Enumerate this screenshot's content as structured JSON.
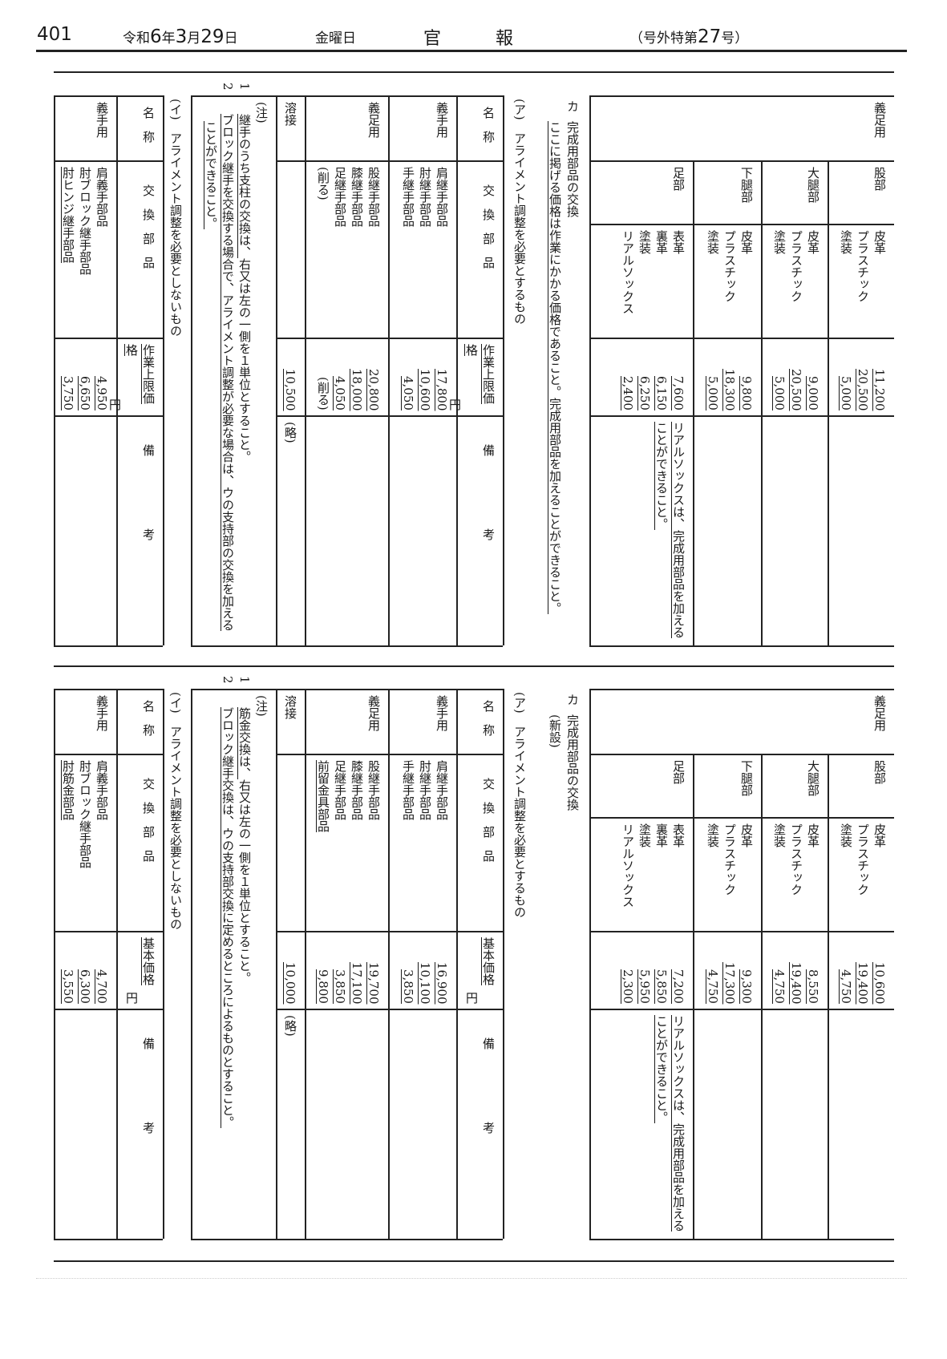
{
  "header": {
    "page_number": "401",
    "era": "令和",
    "year": "6",
    "year_unit": "年",
    "month": "3",
    "month_unit": "月",
    "day": "29",
    "day_unit": "日",
    "weekday": "金曜日",
    "title_1": "官",
    "title_2": "報",
    "issue_prefix": "（号外特第",
    "issue_number": "27",
    "issue_suffix": "号）"
  },
  "sections": [
    {
      "continued_table": {
        "name": "義足用",
        "rows": [
          {
            "part": "股部",
            "materials": [
              "皮革",
              "プラスチック",
              "塗装"
            ],
            "prices": [
              {
                "t": "11,200",
                "u": true
              },
              {
                "t": "20,500",
                "u": true
              },
              {
                "t": "5,000",
                "u": true
              }
            ],
            "remark": null
          },
          {
            "part": "大腿部",
            "materials": [
              "皮革",
              "プラスチック",
              "塗装"
            ],
            "prices": [
              {
                "t": "9,000",
                "u": true
              },
              {
                "t": "20,500",
                "u": true
              },
              {
                "t": "5,000",
                "u": true
              }
            ],
            "remark": null
          },
          {
            "part": "下腿部",
            "materials": [
              "皮革",
              "プラスチック",
              "塗装"
            ],
            "prices": [
              {
                "t": "9,800",
                "u": true
              },
              {
                "t": "18,300",
                "u": true
              },
              {
                "t": "5,000",
                "u": true
              }
            ],
            "remark": null
          },
          {
            "part": "足部",
            "materials": [
              "表革",
              "裏革",
              "塗装",
              "リアルソックス"
            ],
            "prices": [
              {
                "t": "7,600",
                "u": true
              },
              {
                "t": "6,150",
                "u": true
              },
              {
                "t": "6,250",
                "u": true
              },
              {
                "t": "2,400",
                "u": true
              }
            ],
            "remark": {
              "t": "リアルソックスは、完成用部品を加えることができること。",
              "u": true
            }
          }
        ]
      },
      "heading": {
        "label": "カ",
        "title": "完成用部品の交換",
        "subtext": {
          "t": "ここに掲げる価格は作業にかかる価格であること。完成用部品を加えることができること。",
          "u": true
        },
        "sub_a": "(ア)　アライメント調整を必要とするもの",
        "sub_b": "(イ)　アライメント調整を必要としないもの"
      },
      "table_a": {
        "headers": {
          "name": "名　称",
          "parts": "交　換　部　品",
          "price": {
            "t": "作業上限価格",
            "u": true
          },
          "unit": "円",
          "remarks": "備　　　　　　考"
        },
        "rows": [
          {
            "name": "義手用",
            "parts": [
              {
                "t": "肩継手部品"
              },
              {
                "t": "肘継手部品"
              },
              {
                "t": "手継手部品"
              }
            ],
            "prices": [
              {
                "t": "17,800",
                "u": true
              },
              {
                "t": "10,600",
                "u": true
              },
              {
                "t": "4,050",
                "u": true
              }
            ],
            "remark": ""
          },
          {
            "name": "義足用",
            "parts": [
              {
                "t": "股継手部品"
              },
              {
                "t": "膝継手部品"
              },
              {
                "t": "足継手部品"
              },
              {
                "t": "(削る)"
              }
            ],
            "prices": [
              {
                "t": "20,800",
                "u": true
              },
              {
                "t": "18,000",
                "u": true
              },
              {
                "t": "4,050",
                "u": true
              },
              {
                "t": "(削る)"
              }
            ],
            "remark": ""
          },
          {
            "name": "溶接",
            "parts": [],
            "prices": [
              {
                "t": "10,500",
                "u": true
              }
            ],
            "remark": "(略)"
          }
        ],
        "notes_label": "(注)",
        "notes": [
          {
            "num": "1",
            "segments": [
              {
                "t": "継手のうち支柱の交換は、",
                "u": true
              },
              {
                "t": "右又は左の一側を１単位とすること。"
              }
            ]
          },
          {
            "num": "2",
            "segments": [
              {
                "t": "ブロック継手を交換する場合で、アライメント調整が必要な場合は、ウの支持部の交換を加えることができること。",
                "u": true
              }
            ]
          }
        ]
      },
      "table_b": {
        "headers": {
          "name": "名　称",
          "parts": "交　換　部　品",
          "price": {
            "t": "作業上限価格",
            "u": true
          },
          "unit": "円",
          "remarks": "備　　　　　　考"
        },
        "rows": [
          {
            "name": "義手用",
            "parts": [
              {
                "t": "肩義手部品"
              },
              {
                "t": "肘ブロック継手部品"
              },
              {
                "t": "肘ヒンジ継手部品",
                "u": true
              }
            ],
            "prices": [
              {
                "t": "4,950",
                "u": true
              },
              {
                "t": "6,650",
                "u": true
              },
              {
                "t": "3,750",
                "u": true
              }
            ],
            "remark": ""
          }
        ]
      }
    },
    {
      "continued_table": {
        "name": "義足用",
        "rows": [
          {
            "part": "股部",
            "materials": [
              "皮革",
              "プラスチック",
              "塗装"
            ],
            "prices": [
              {
                "t": "10,600",
                "u": true
              },
              {
                "t": "19,400",
                "u": true
              },
              {
                "t": "4,750",
                "u": true
              }
            ],
            "remark": null
          },
          {
            "part": "大腿部",
            "materials": [
              "皮革",
              "プラスチック",
              "塗装"
            ],
            "prices": [
              {
                "t": "8,550",
                "u": true
              },
              {
                "t": "19,400",
                "u": true
              },
              {
                "t": "4,750",
                "u": true
              }
            ],
            "remark": null
          },
          {
            "part": "下腿部",
            "materials": [
              "皮革",
              "プラスチック",
              "塗装"
            ],
            "prices": [
              {
                "t": "9,300",
                "u": true
              },
              {
                "t": "17,300",
                "u": true
              },
              {
                "t": "4,750",
                "u": true
              }
            ],
            "remark": null
          },
          {
            "part": "足部",
            "materials": [
              "表革",
              "裏革",
              "塗装",
              "リアルソックス"
            ],
            "prices": [
              {
                "t": "7,200",
                "u": true
              },
              {
                "t": "5,850",
                "u": true
              },
              {
                "t": "5,950",
                "u": true
              },
              {
                "t": "2,300",
                "u": true
              }
            ],
            "remark": {
              "t": "リアルソックスは、完成用部品を加えることができること。",
              "u": true
            }
          }
        ]
      },
      "heading": {
        "label": "カ",
        "title": "完成用部品の交換",
        "subtext": {
          "t": "(新設)"
        },
        "sub_a": "(ア)　アライメント調整を必要とするもの",
        "sub_b": "(イ)　アライメント調整を必要としないもの"
      },
      "table_a": {
        "headers": {
          "name": "名　称",
          "parts": "交　換　部　品",
          "price": {
            "t": "基本価格",
            "u": true
          },
          "unit": "円",
          "remarks": "備　　　　　　考"
        },
        "rows": [
          {
            "name": "義手用",
            "parts": [
              {
                "t": "肩継手部品"
              },
              {
                "t": "肘継手部品"
              },
              {
                "t": "手継手部品"
              }
            ],
            "prices": [
              {
                "t": "16,900",
                "u": true
              },
              {
                "t": "10,100",
                "u": true
              },
              {
                "t": "3,850",
                "u": true
              }
            ],
            "remark": ""
          },
          {
            "name": "義足用",
            "parts": [
              {
                "t": "股継手部品"
              },
              {
                "t": "膝継手部品"
              },
              {
                "t": "足継手部品"
              },
              {
                "t": "前留金具部品",
                "u": true
              }
            ],
            "prices": [
              {
                "t": "19,700",
                "u": true
              },
              {
                "t": "17,100",
                "u": true
              },
              {
                "t": "3,850",
                "u": true
              },
              {
                "t": "9,800",
                "u": true
              }
            ],
            "remark": ""
          },
          {
            "name": "溶接",
            "parts": [],
            "prices": [
              {
                "t": "10,000",
                "u": true
              }
            ],
            "remark": "(略)"
          }
        ],
        "notes_label": "(注)",
        "notes": [
          {
            "num": "1",
            "segments": [
              {
                "t": "筋金交換は、",
                "u": true
              },
              {
                "t": "右又は左の一側を１単位とすること。"
              }
            ]
          },
          {
            "num": "2",
            "segments": [
              {
                "t": "ブロック継手交換は、ウの支持部交換に定めるところによるものとすること。",
                "u": true
              }
            ]
          }
        ]
      },
      "table_b": {
        "headers": {
          "name": "名　称",
          "parts": "交　換　部　品",
          "price": {
            "t": "基本価格",
            "u": true
          },
          "unit": "円",
          "remarks": "備　　　　　　考"
        },
        "rows": [
          {
            "name": "義手用",
            "parts": [
              {
                "t": "肩義手部品"
              },
              {
                "t": "肘ブロック継手部品"
              },
              {
                "t": "肘筋金部品",
                "u": true
              }
            ],
            "prices": [
              {
                "t": "4,700",
                "u": true
              },
              {
                "t": "6,300",
                "u": true
              },
              {
                "t": "3,550",
                "u": true
              }
            ],
            "remark": ""
          }
        ]
      }
    }
  ]
}
